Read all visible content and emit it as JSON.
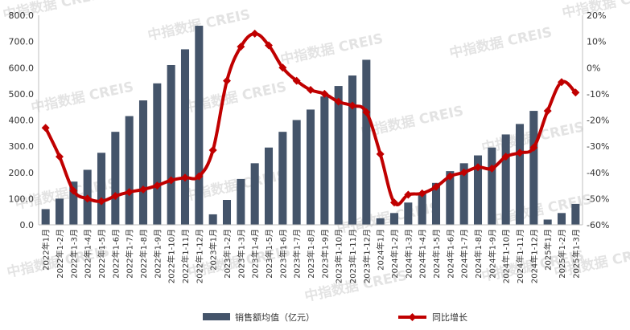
{
  "watermark": "中指数据 CREIS",
  "chart_data": {
    "type": "bar+line",
    "categories": [
      "2022年1月",
      "2022年1-2月",
      "2022年1-3月",
      "2022年1-4月",
      "2022年1-5月",
      "2022年1-6月",
      "2022年1-7月",
      "2022年1-8月",
      "2022年1-9月",
      "2022年1-10月",
      "2022年1-11月",
      "2022年1-12月",
      "2023年1月",
      "2023年1-2月",
      "2023年1-3月",
      "2023年1-4月",
      "2023年1-5月",
      "2023年1-6月",
      "2023年1-7月",
      "2023年1-8月",
      "2023年1-9月",
      "2023年1-10月",
      "2023年1-11月",
      "2023年1-12月",
      "2024年1月",
      "2024年1-2月",
      "2024年1-3月",
      "2024年1-4月",
      "2024年1-5月",
      "2024年1-6月",
      "2024年1-7月",
      "2024年1-8月",
      "2024年1-9月",
      "2024年1-10月",
      "2024年1-11月",
      "2024年1-12月",
      "2025年1月",
      "2025年1-2月",
      "2025年1-3月"
    ],
    "series": [
      {
        "name": "销售额均值（亿元）",
        "type": "bar",
        "axis": "left",
        "color": "#44546a",
        "values": [
          60,
          100,
          165,
          210,
          275,
          355,
          415,
          475,
          540,
          610,
          670,
          760,
          40,
          95,
          175,
          235,
          295,
          355,
          400,
          440,
          490,
          530,
          570,
          630,
          25,
          45,
          85,
          120,
          160,
          205,
          235,
          265,
          295,
          345,
          385,
          435,
          20,
          45,
          80
        ]
      },
      {
        "name": "同比增长",
        "type": "line",
        "axis": "right",
        "color": "#c00000",
        "unit": "%",
        "values": [
          -23,
          -34,
          -47,
          -50,
          -51,
          -49,
          -47.5,
          -46.5,
          -45,
          -43,
          -42,
          -41.5,
          -31.5,
          -5,
          8,
          13,
          8.5,
          0,
          -5,
          -8.5,
          -10,
          -13,
          -14.5,
          -17,
          -33,
          -51.5,
          -48.5,
          -48,
          -45.5,
          -41.5,
          -40,
          -38,
          -38.5,
          -34,
          -32.5,
          -30.5,
          -16.5,
          -5.5,
          -9.5
        ]
      }
    ],
    "y_left": {
      "min": 0,
      "max": 800,
      "step": 100,
      "tick_labels": [
        "0.0",
        "100.0",
        "200.0",
        "300.0",
        "400.0",
        "500.0",
        "600.0",
        "700.0",
        "800.0"
      ]
    },
    "y_right": {
      "min": -60,
      "max": 20,
      "step": 10,
      "tick_labels": [
        "-60%",
        "-50%",
        "-40%",
        "-30%",
        "-20%",
        "-10%",
        "0%",
        "10%",
        "20%"
      ]
    },
    "legend_position": "bottom",
    "grid": false
  }
}
